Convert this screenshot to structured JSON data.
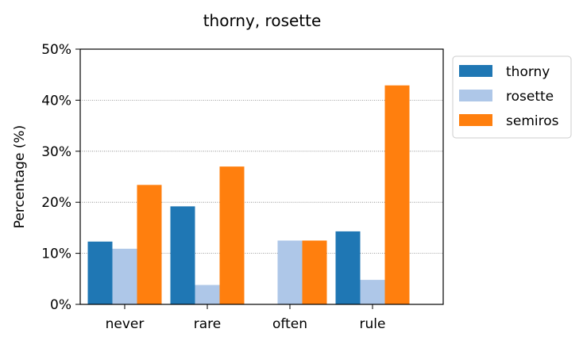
{
  "chart_data": {
    "type": "bar",
    "title": "thorny, rosette",
    "xlabel": "",
    "ylabel": "Percentage (%)",
    "categories": [
      "never",
      "rare",
      "often",
      "rule"
    ],
    "ylim": [
      0,
      50
    ],
    "yticks": [
      "0%",
      "10%",
      "20%",
      "30%",
      "40%",
      "50%"
    ],
    "grid": "horizontal-dotted",
    "legend_position": "outside-top-right",
    "series": [
      {
        "name": "thorny",
        "color": "#1f77b4",
        "values": [
          12.3,
          19.2,
          0.0,
          14.3
        ]
      },
      {
        "name": "rosette",
        "color": "#aec7e8",
        "values": [
          10.9,
          3.8,
          12.5,
          4.8
        ]
      },
      {
        "name": "semiros",
        "color": "#ff7f0e",
        "values": [
          23.4,
          27.0,
          12.5,
          42.9
        ]
      }
    ]
  }
}
